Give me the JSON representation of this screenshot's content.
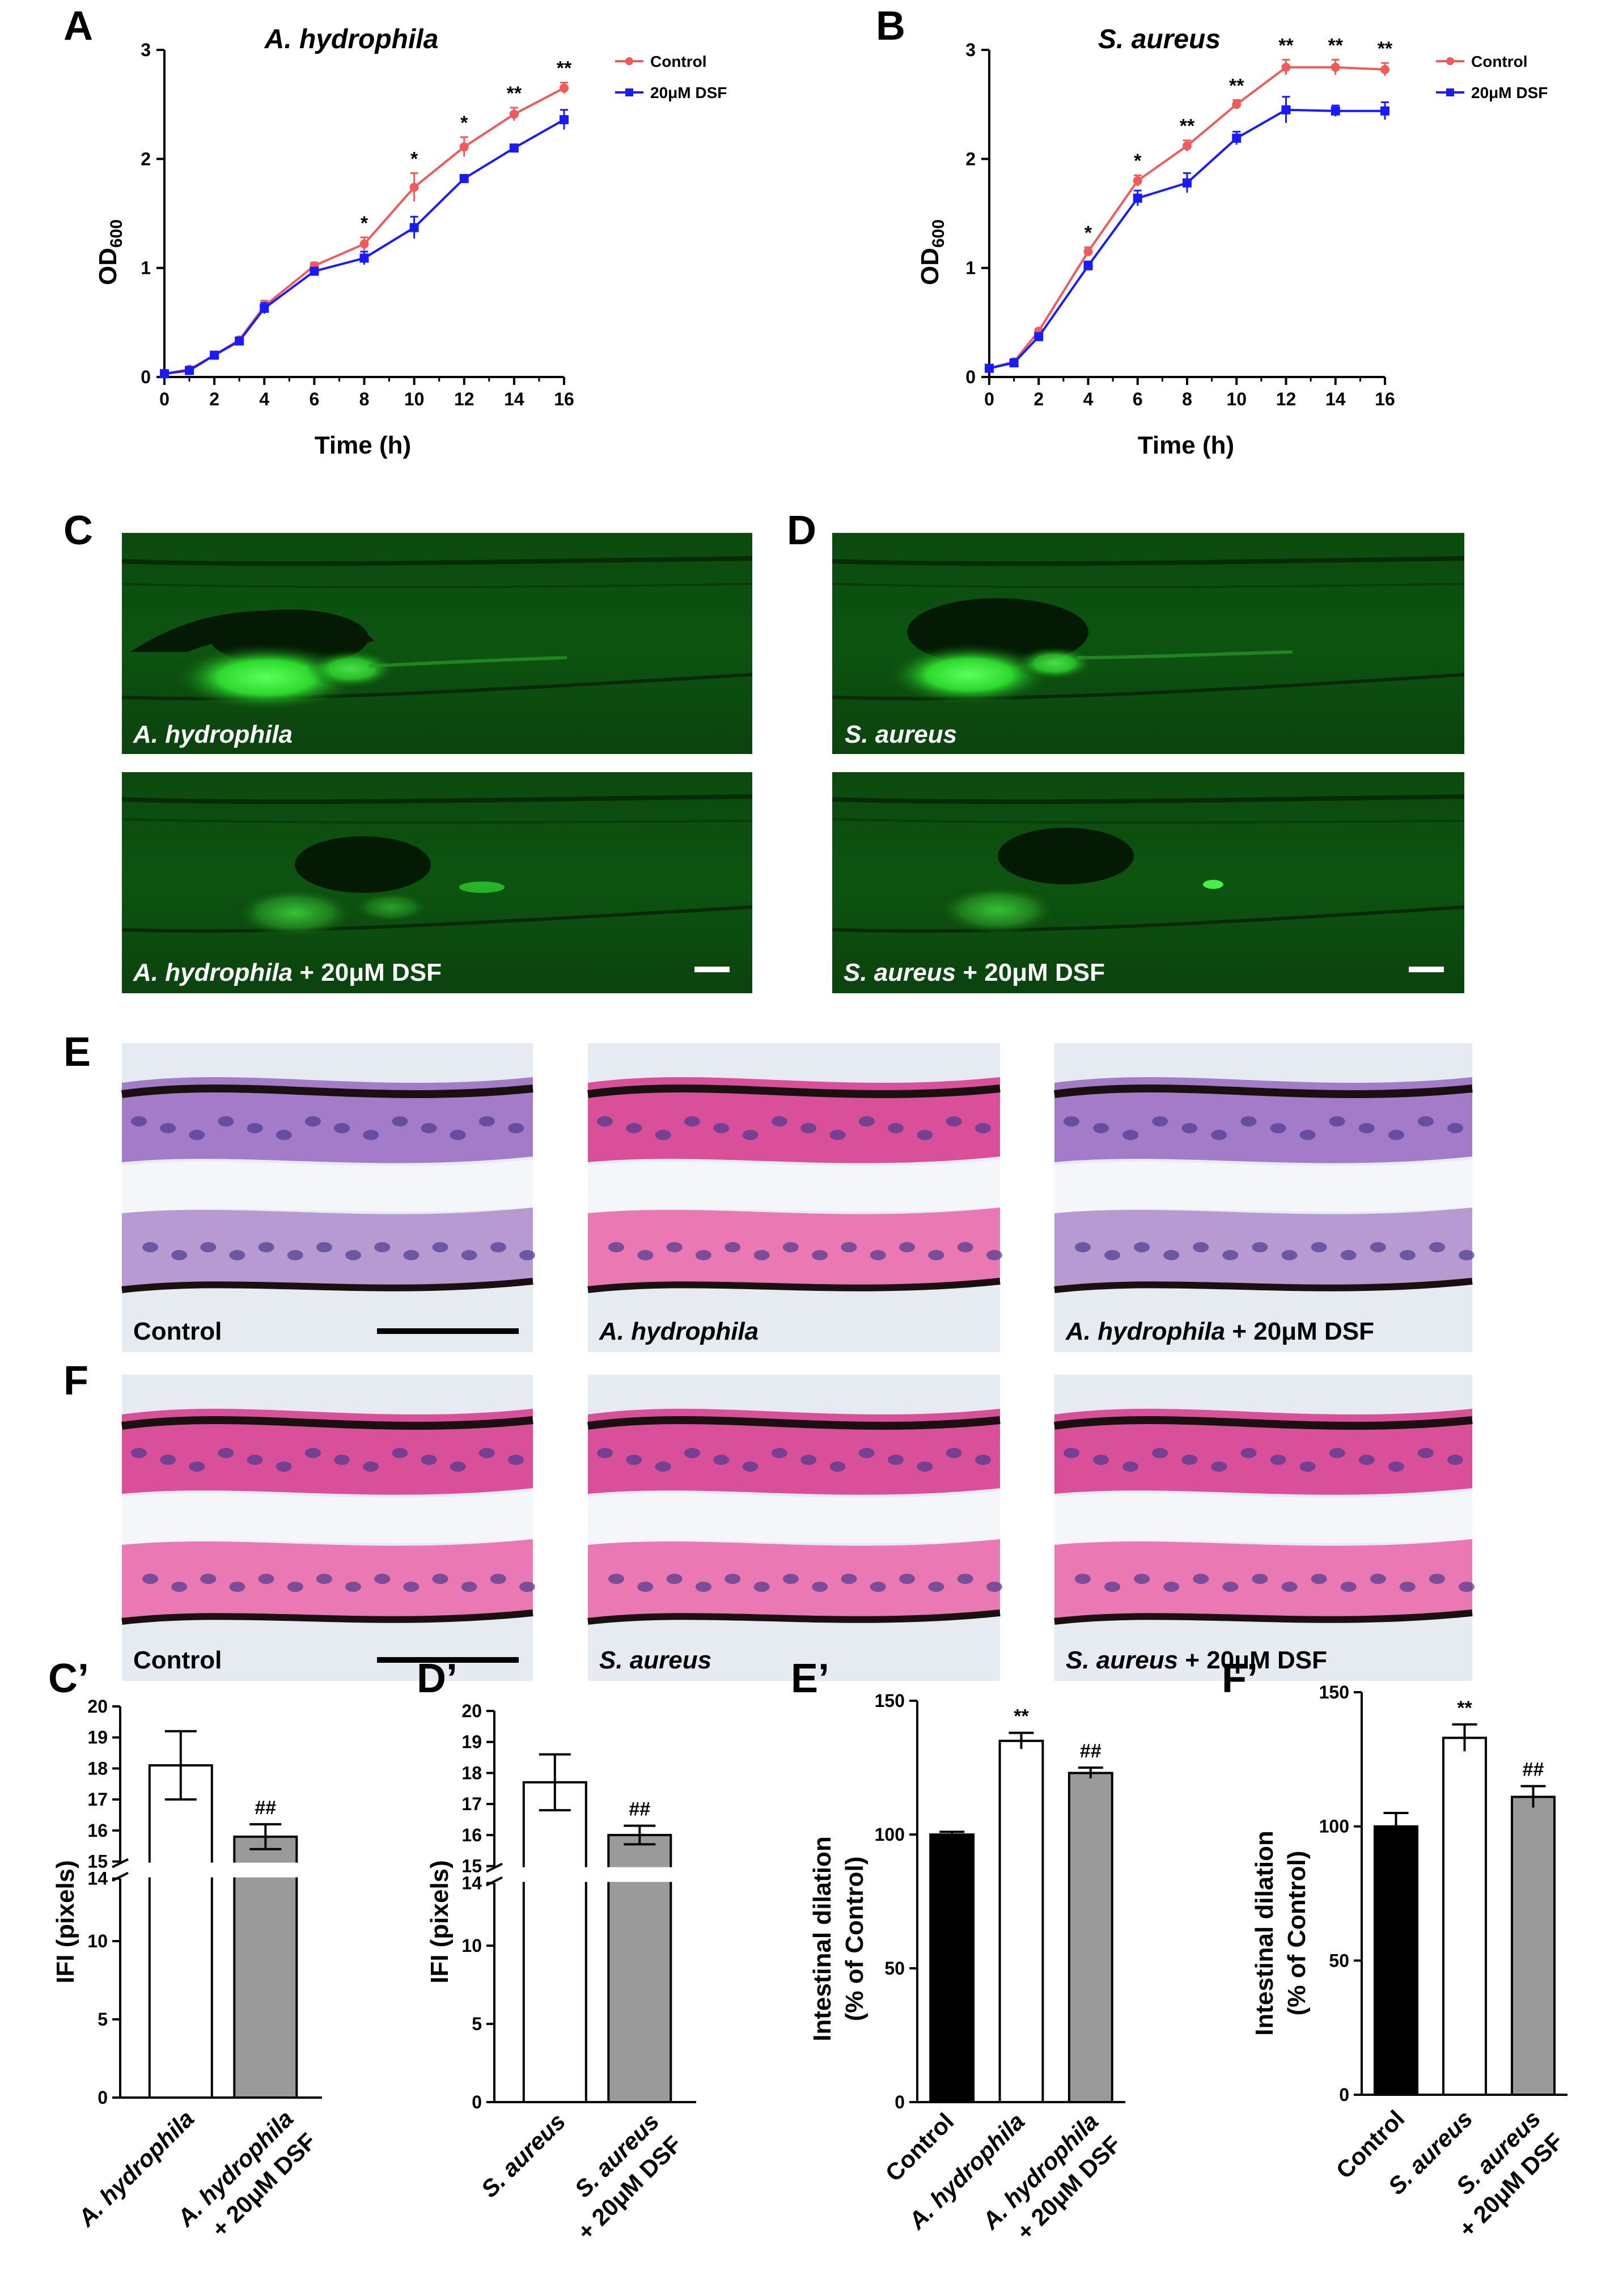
{
  "panel_labels": {
    "A": "A",
    "B": "B",
    "C": "C",
    "D": "D",
    "E": "E",
    "F": "F",
    "Cp": "C’",
    "Dp": "D’",
    "Ep": "E’",
    "Fp": "F’"
  },
  "colors": {
    "control": "#f05a5a",
    "dsf": "#1a1aff",
    "bar_black": "#000000",
    "bar_white": "#ffffff",
    "bar_gray": "#9a9a9a",
    "fluor_bg": "#0b3d0b",
    "fluor_bright": "#39ff39",
    "he_pink": "#e8569f",
    "he_purple": "#8a6fc4"
  },
  "growth": {
    "A": {
      "title": "A. hydrophila",
      "xlabel": "Time (h)",
      "ylabel_main": "OD",
      "ylabel_sub": "600"
    },
    "B": {
      "title": "S. aureus",
      "xlabel": "Time (h)",
      "ylabel_main": "OD",
      "ylabel_sub": "600"
    }
  },
  "images": {
    "C_top": "A. hydrophila",
    "C_bottom_italic": "A. hydrophila",
    "C_bottom_rest": " + 20μM DSF",
    "D_top": "S. aureus",
    "D_bottom_italic": "S. aureus",
    "D_bottom_rest": " + 20μM DSF",
    "E1": "Control",
    "E2": "A. hydrophila",
    "E3_italic": "A. hydrophila",
    "E3_rest": " + 20μM DSF",
    "F1": "Control",
    "F2": "S. aureus",
    "F3_italic": "S. aureus",
    "F3_rest": " + 20μM DSF"
  },
  "bars": {
    "Cp": {
      "ylabel": "IFI (pixels)",
      "cat1": "A. hydrophila",
      "cat2a": "A. hydrophila",
      "cat2b": "+ 20μM DSF",
      "sig2": "##"
    },
    "Dp": {
      "ylabel": "IFI (pixels)",
      "cat1": "S. aureus",
      "cat2a": "S. aureus",
      "cat2b": "+ 20μM DSF",
      "sig2": "##"
    },
    "Ep": {
      "ylabel1": "Intestinal dilation",
      "ylabel2": "(% of Control)",
      "cat1": "Control",
      "cat2": "A. hydrophila",
      "cat3a": "A. hydrophila",
      "cat3b": "+ 20μM DSF",
      "sig2": "**",
      "sig3": "##"
    },
    "Fp": {
      "ylabel1": "Intestinal dilation",
      "ylabel2": "(% of Control)",
      "cat1": "Control",
      "cat2": "S. aureus",
      "cat3a": "S. aureus",
      "cat3b": "+ 20μM DSF",
      "sig2": "**",
      "sig3": "##"
    }
  },
  "chart_data": [
    {
      "type": "line",
      "panel": "A",
      "title": "A. hydrophila",
      "xlabel": "Time (h)",
      "ylabel": "OD600",
      "xlim": [
        0,
        16
      ],
      "ylim": [
        0,
        3
      ],
      "xticks": [
        0,
        2,
        4,
        6,
        8,
        10,
        12,
        14,
        16
      ],
      "yticks": [
        0,
        1,
        2,
        3
      ],
      "legend": "top-right",
      "x": [
        0,
        1,
        2,
        3,
        4,
        6,
        8,
        10,
        12,
        14,
        16
      ],
      "series": [
        {
          "name": "Control",
          "values": [
            0.03,
            0.07,
            0.2,
            0.34,
            0.65,
            1.02,
            1.22,
            1.74,
            2.11,
            2.41,
            2.65
          ],
          "errors": [
            0.01,
            0.01,
            0.02,
            0.02,
            0.05,
            0.03,
            0.06,
            0.13,
            0.09,
            0.06,
            0.05
          ]
        },
        {
          "name": "20μM DSF",
          "values": [
            0.03,
            0.06,
            0.2,
            0.33,
            0.63,
            0.97,
            1.09,
            1.37,
            1.82,
            2.1,
            2.36
          ],
          "errors": [
            0.01,
            0.01,
            0.02,
            0.02,
            0.05,
            0.02,
            0.06,
            0.1,
            0.03,
            0.03,
            0.09
          ]
        }
      ],
      "annotations": [
        {
          "x": 8,
          "text": "*"
        },
        {
          "x": 10,
          "text": "*"
        },
        {
          "x": 12,
          "text": "*"
        },
        {
          "x": 14,
          "text": "**"
        },
        {
          "x": 16,
          "text": "**"
        }
      ]
    },
    {
      "type": "line",
      "panel": "B",
      "title": "S. aureus",
      "xlabel": "Time (h)",
      "ylabel": "OD600",
      "xlim": [
        0,
        16
      ],
      "ylim": [
        0,
        3
      ],
      "xticks": [
        0,
        2,
        4,
        6,
        8,
        10,
        12,
        14,
        16
      ],
      "yticks": [
        0,
        1,
        2,
        3
      ],
      "legend": "top-right",
      "x": [
        0,
        1,
        2,
        4,
        6,
        8,
        10,
        12,
        14,
        16
      ],
      "series": [
        {
          "name": "Control",
          "values": [
            0.08,
            0.14,
            0.42,
            1.15,
            1.8,
            2.12,
            2.5,
            2.84,
            2.84,
            2.82
          ],
          "errors": [
            0.01,
            0.01,
            0.02,
            0.04,
            0.05,
            0.05,
            0.04,
            0.07,
            0.07,
            0.06
          ]
        },
        {
          "name": "20μM DSF",
          "values": [
            0.08,
            0.13,
            0.37,
            1.02,
            1.64,
            1.78,
            2.19,
            2.45,
            2.44,
            2.44
          ],
          "errors": [
            0.01,
            0.01,
            0.02,
            0.04,
            0.07,
            0.09,
            0.06,
            0.12,
            0.05,
            0.08
          ]
        }
      ],
      "annotations": [
        {
          "x": 4,
          "text": "*"
        },
        {
          "x": 6,
          "text": "*"
        },
        {
          "x": 8,
          "text": "**"
        },
        {
          "x": 10,
          "text": "**"
        },
        {
          "x": 12,
          "text": "**"
        },
        {
          "x": 14,
          "text": "**"
        },
        {
          "x": 16,
          "text": "**"
        }
      ]
    },
    {
      "type": "bar",
      "panel": "Cp",
      "ylabel": "IFI (pixels)",
      "axis_break": [
        14,
        15
      ],
      "yticks": [
        0,
        5,
        10,
        14,
        15,
        16,
        17,
        18,
        19,
        20
      ],
      "categories": [
        "A. hydrophila",
        "A. hydrophila + 20μM DSF"
      ],
      "values": [
        18.1,
        15.8
      ],
      "errors": [
        1.1,
        0.4
      ]
    },
    {
      "type": "bar",
      "panel": "Dp",
      "ylabel": "IFI (pixels)",
      "axis_break": [
        14,
        15
      ],
      "yticks": [
        0,
        5,
        10,
        14,
        15,
        16,
        17,
        18,
        19,
        20
      ],
      "categories": [
        "S. aureus",
        "S. aureus + 20μM DSF"
      ],
      "values": [
        17.7,
        16.0
      ],
      "errors": [
        0.9,
        0.3
      ]
    },
    {
      "type": "bar",
      "panel": "Ep",
      "ylabel": "Intestinal dilation (% of Control)",
      "ylim": [
        0,
        150
      ],
      "yticks": [
        0,
        50,
        100,
        150
      ],
      "categories": [
        "Control",
        "A. hydrophila",
        "A. hydrophila + 20μM DSF"
      ],
      "values": [
        100,
        135,
        123
      ],
      "errors": [
        1,
        3,
        2
      ]
    },
    {
      "type": "bar",
      "panel": "Fp",
      "ylabel": "Intestinal dilation (% of Control)",
      "ylim": [
        0,
        150
      ],
      "yticks": [
        0,
        50,
        100,
        150
      ],
      "categories": [
        "Control",
        "S. aureus",
        "S. aureus + 20μM DSF"
      ],
      "values": [
        100,
        133,
        111
      ],
      "errors": [
        5,
        5,
        4
      ]
    }
  ]
}
